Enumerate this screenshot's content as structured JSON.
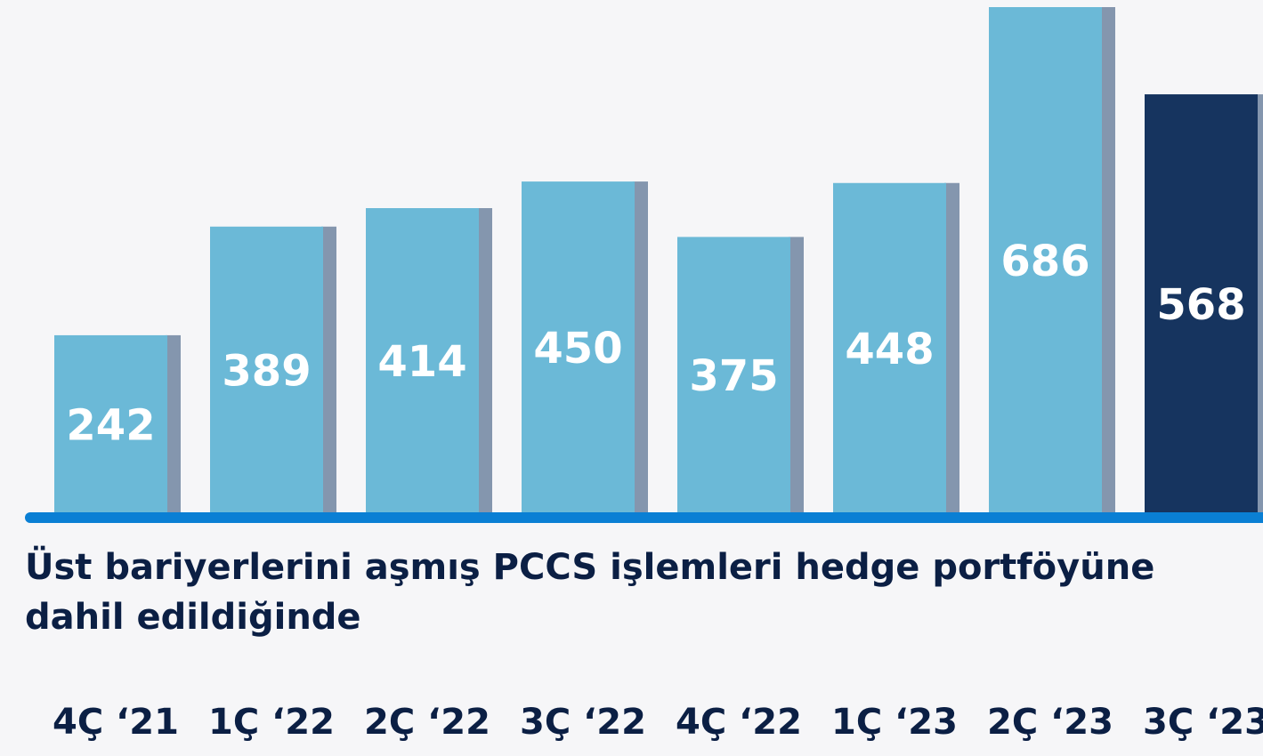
{
  "chart_data": {
    "type": "bar",
    "categories": [
      "4Ç ‘21",
      "1Ç ‘22",
      "2Ç ‘22",
      "3Ç ‘22",
      "4Ç ‘22",
      "1Ç ‘23",
      "2Ç ‘23",
      "3Ç ‘23"
    ],
    "values": [
      242,
      389,
      414,
      450,
      375,
      448,
      686,
      568
    ],
    "colors": [
      "#6bb9d7",
      "#6bb9d7",
      "#6bb9d7",
      "#6bb9d7",
      "#6bb9d7",
      "#6bb9d7",
      "#6bb9d7",
      "#16345f"
    ],
    "annotations": [
      "Üst bariyerlerini aşmış PCCS işlemleri hedge portföyüne",
      "dahil edildiğinde"
    ]
  }
}
